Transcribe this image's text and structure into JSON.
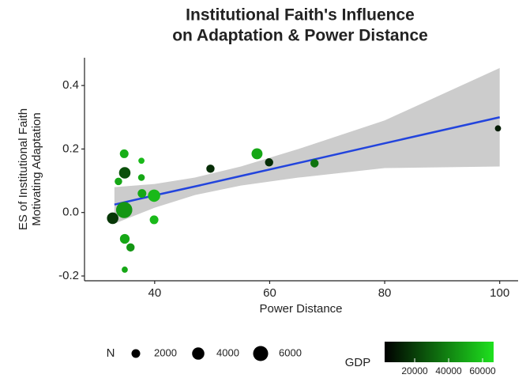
{
  "chart_data": {
    "type": "scatter",
    "title": [
      "Institutional Faith's Influence",
      "on Adaptation & Power Distance"
    ],
    "x_label": "Power Distance",
    "y_label": [
      "ES of Institutional Faith",
      "Motivating Adaptation"
    ],
    "xlim": [
      27.8,
      103.2
    ],
    "ylim": [
      -0.215,
      0.4875
    ],
    "xticks": [
      40,
      60,
      80,
      100
    ],
    "yticks": [
      -0.2,
      {
        "value": 0,
        "label": "0.0"
      },
      0.2,
      0.4
    ],
    "x": [
      32.7,
      33.7,
      34.7,
      34.7,
      34.8,
      34.8,
      34.8,
      35.8,
      37.7,
      37.7,
      37.8,
      39.9,
      39.9,
      49.7,
      57.8,
      59.9,
      67.8,
      99.7
    ],
    "y": [
      -0.018,
      0.098,
      0.008,
      0.185,
      0.125,
      -0.083,
      -0.18,
      -0.11,
      0.163,
      0.11,
      0.06,
      0.053,
      -0.023,
      0.138,
      0.185,
      0.158,
      0.155,
      0.265
    ],
    "size": [
      3500,
      1500,
      7000,
      2000,
      3500,
      2500,
      1000,
      1800,
      1000,
      1200,
      2000,
      4000,
      2000,
      1800,
      3200,
      1800,
      1800,
      1000
    ],
    "gdp": [
      18000,
      50000,
      45000,
      52000,
      25000,
      50000,
      50000,
      45000,
      55000,
      50000,
      50000,
      55000,
      55000,
      15000,
      50000,
      15000,
      35000,
      10000
    ],
    "fit": {
      "x": [
        33,
        40,
        47,
        55,
        65,
        80,
        100
      ],
      "y": [
        0.025,
        0.054,
        0.082,
        0.115,
        0.156,
        0.218,
        0.3
      ],
      "lower": [
        -0.035,
        0.015,
        0.055,
        0.085,
        0.11,
        0.14,
        0.145
      ],
      "upper": [
        0.08,
        0.09,
        0.11,
        0.145,
        0.2,
        0.29,
        0.455
      ],
      "line_color": "#2244dd",
      "band_color": "#cccccc"
    },
    "size_legend": {
      "title": "N",
      "values": [
        2000,
        4000,
        6000
      ]
    },
    "color_legend": {
      "title": "GDP",
      "lim": [
        2300,
        66500
      ],
      "ticks": [
        20000,
        40000,
        60000
      ],
      "color_low": "#000000",
      "color_high": "#1ee11e"
    }
  }
}
